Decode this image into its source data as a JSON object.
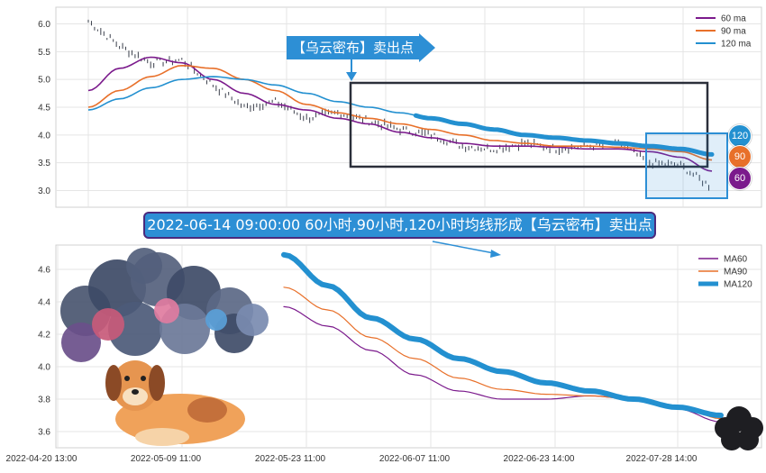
{
  "colors": {
    "ma60": "#7b1a8c",
    "ma90": "#e8702a",
    "ma120": "#2390d0",
    "box_dark": "#2b2f3a",
    "box_blue": "#2d8fd5",
    "grid": "#e5e5e5"
  },
  "annotations": {
    "top_callout": "【乌云密布】卖出点",
    "banner": "2022-06-14 09:00:00 60小时,90小时,120小时均线形成【乌云密布】卖出点",
    "badges": [
      "120",
      "90",
      "60"
    ]
  },
  "chart_data": [
    {
      "type": "line",
      "title": "",
      "ylim": [
        2.7,
        6.3
      ],
      "yticks": [
        "3.0",
        "3.5",
        "4.0",
        "4.5",
        "5.0",
        "5.5",
        "6.0"
      ],
      "grid": true,
      "legend_position": "top-right",
      "price_series": {
        "name": "",
        "x_index": [
          0,
          10,
          20,
          30,
          40,
          50,
          60,
          70,
          80,
          90,
          100,
          110,
          120,
          130,
          140,
          150,
          160,
          170,
          180,
          190,
          200
        ],
        "values": [
          6.05,
          5.6,
          5.3,
          5.35,
          4.9,
          4.5,
          4.6,
          4.3,
          4.4,
          4.25,
          4.1,
          4.0,
          3.8,
          3.75,
          3.85,
          3.75,
          3.8,
          3.85,
          3.5,
          3.45,
          3.05
        ]
      },
      "series": [
        {
          "name": "60 ma",
          "values": [
            4.8,
            5.2,
            5.4,
            5.3,
            5.0,
            4.75,
            4.55,
            4.45,
            4.3,
            4.2,
            4.05,
            3.95,
            3.85,
            3.8,
            3.8,
            3.78,
            3.75,
            3.75,
            3.7,
            3.6,
            3.35
          ]
        },
        {
          "name": "90 ma",
          "values": [
            4.5,
            4.8,
            5.05,
            5.25,
            5.2,
            5.0,
            4.8,
            4.55,
            4.4,
            4.3,
            4.2,
            4.1,
            4.0,
            3.9,
            3.85,
            3.8,
            3.8,
            3.78,
            3.75,
            3.7,
            3.55
          ]
        },
        {
          "name": "120 ma",
          "values": [
            4.45,
            4.65,
            4.85,
            5.0,
            5.05,
            5.0,
            4.9,
            4.75,
            4.6,
            4.5,
            4.4,
            4.3,
            4.2,
            4.1,
            4.0,
            3.95,
            3.9,
            3.85,
            3.8,
            3.75,
            3.65
          ]
        }
      ]
    },
    {
      "type": "line",
      "title": "",
      "ylim": [
        3.5,
        4.75
      ],
      "yticks": [
        "3.6",
        "3.8",
        "4.0",
        "4.2",
        "4.4",
        "4.6"
      ],
      "xticks": [
        "2022-04-20 13:00",
        "2022-05-09 11:00",
        "2022-05-23 11:00",
        "2022-06-07 11:00",
        "2022-06-23 14:00",
        "2022-07-28 14:00"
      ],
      "grid": true,
      "legend_position": "top-right",
      "series": [
        {
          "name": "MA60",
          "x_index": [
            0,
            10,
            20,
            30,
            40,
            50,
            60,
            70,
            80,
            90,
            100
          ],
          "values": [
            4.37,
            4.25,
            4.1,
            3.95,
            3.85,
            3.8,
            3.8,
            3.82,
            3.8,
            3.74,
            3.66
          ]
        },
        {
          "name": "MA90",
          "x_index": [
            0,
            10,
            20,
            30,
            40,
            50,
            60,
            70,
            80,
            90,
            100
          ],
          "values": [
            4.49,
            4.35,
            4.18,
            4.05,
            3.93,
            3.86,
            3.83,
            3.82,
            3.8,
            3.76,
            3.68
          ]
        },
        {
          "name": "MA120",
          "x_index": [
            0,
            10,
            20,
            30,
            40,
            50,
            60,
            70,
            80,
            90,
            100
          ],
          "values": [
            4.69,
            4.5,
            4.3,
            4.17,
            4.05,
            3.97,
            3.9,
            3.85,
            3.8,
            3.75,
            3.7
          ]
        }
      ]
    }
  ]
}
